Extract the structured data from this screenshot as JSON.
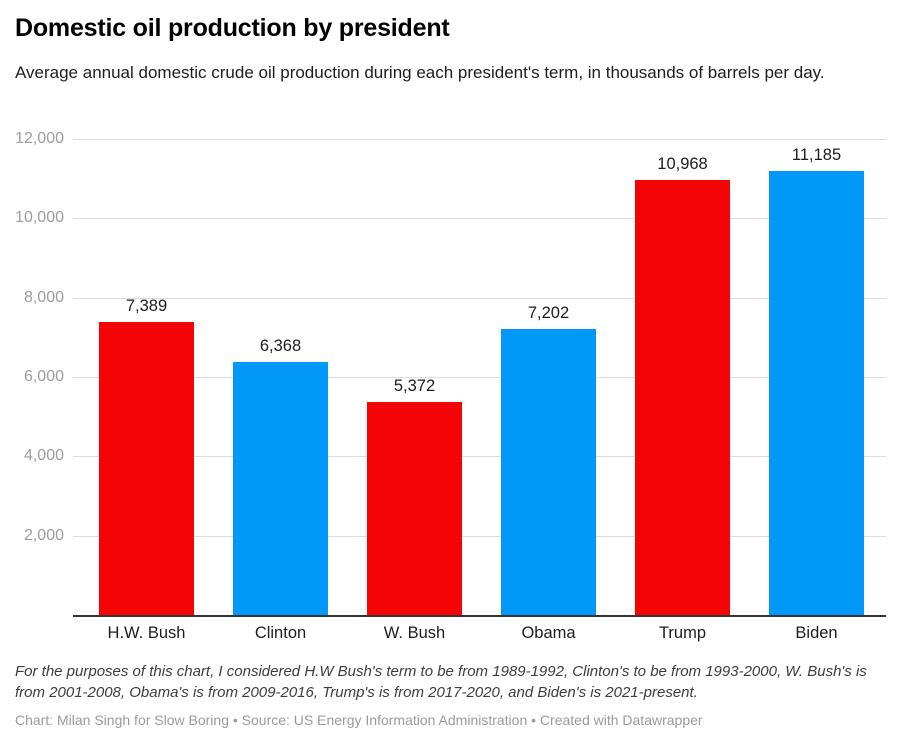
{
  "header": {
    "title": "Domestic oil production by president",
    "subtitle": "Average annual domestic crude oil production during each president's term, in thousands of barrels per day."
  },
  "chart_data": {
    "type": "bar",
    "title": "Domestic oil production by president",
    "subtitle": "Average annual domestic crude oil production during each president's term, in thousands of barrels per day.",
    "categories": [
      "H.W. Bush",
      "Clinton",
      "W. Bush",
      "Obama",
      "Trump",
      "Biden"
    ],
    "values": [
      7389,
      6368,
      5372,
      7202,
      10968,
      11185
    ],
    "value_labels": [
      "7,389",
      "6,368",
      "5,372",
      "7,202",
      "10,968",
      "11,185"
    ],
    "bar_colors": [
      "#f40404",
      "#0099fa",
      "#f40404",
      "#0099fa",
      "#f40404",
      "#0099fa"
    ],
    "xlabel": "",
    "ylabel": "thousands of barrels per day",
    "ylim": [
      0,
      12000
    ],
    "yticks": [
      2000,
      4000,
      6000,
      8000,
      10000,
      12000
    ],
    "ytick_labels": [
      "2,000",
      "4,000",
      "6,000",
      "8,000",
      "10,000",
      "12,000"
    ],
    "grid": true,
    "legend": false,
    "legend_position": "none"
  },
  "footer": {
    "note": "For the purposes of this chart, I considered H.W Bush's term to be from 1989-1992, Clinton's to be from 1993-2000, W. Bush's is from 2001-2008, Obama's is from 2009-2016, Trump's is from 2017-2020, and Biden's is 2021-present.",
    "credit": "Chart: Milan Singh for Slow Boring • Source: US Energy Information Administration • Created with Datawrapper"
  },
  "colors": {
    "republican_red": "#f40404",
    "democrat_blue": "#0099fa",
    "gridline": "#dddddd",
    "axis_line": "#333333",
    "ytick_text": "#9d9d9d",
    "body_text": "#1d1d1d",
    "credit_text": "#9b9b9b"
  }
}
